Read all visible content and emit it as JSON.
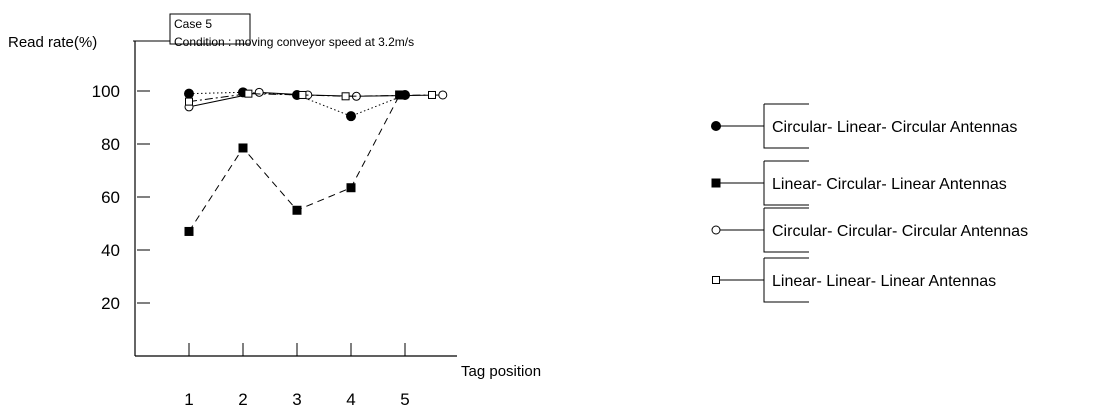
{
  "chart_data": {
    "type": "line",
    "annotation": {
      "case": "Case 5",
      "condition": "Condition : moving conveyor speed at 3.2m/s"
    },
    "ylabel": "Read rate(%)",
    "xlabel": "Tag position",
    "x": [
      1,
      2,
      3,
      4,
      5
    ],
    "ylim": [
      0,
      110
    ],
    "xlim": [
      0,
      6.3
    ],
    "yticks": [
      20,
      40,
      60,
      80,
      100
    ],
    "xticks": [
      1,
      2,
      3,
      4,
      5
    ],
    "grid": false,
    "legend_position": "right",
    "series": [
      {
        "name": "Circular- Linear- Circular Antennas",
        "marker": "filled-circle",
        "line": "dotted",
        "points": [
          [
            1,
            99
          ],
          [
            2,
            99.5
          ],
          [
            3,
            98.5
          ],
          [
            4,
            90.5
          ],
          [
            5,
            98.5
          ]
        ]
      },
      {
        "name": "Linear- Circular- Linear Antennas",
        "marker": "filled-square",
        "line": "dashed",
        "points": [
          [
            1,
            47
          ],
          [
            2,
            78.5
          ],
          [
            3,
            55
          ],
          [
            4,
            63.5
          ],
          [
            4.9,
            98.5
          ]
        ]
      },
      {
        "name": "Circular- Circular- Circular Antennas",
        "marker": "open-circle",
        "line": "solid",
        "points": [
          [
            1,
            94
          ],
          [
            2.3,
            99.5
          ],
          [
            3.2,
            98.5
          ],
          [
            4.1,
            98
          ],
          [
            5.7,
            98.5
          ]
        ]
      },
      {
        "name": "Linear- Linear- Linear Antennas",
        "marker": "open-square",
        "line": "dashdot",
        "points": [
          [
            1,
            96
          ],
          [
            2.1,
            99
          ],
          [
            3.1,
            98.5
          ],
          [
            3.9,
            98
          ],
          [
            5.5,
            98.5
          ]
        ]
      }
    ]
  }
}
